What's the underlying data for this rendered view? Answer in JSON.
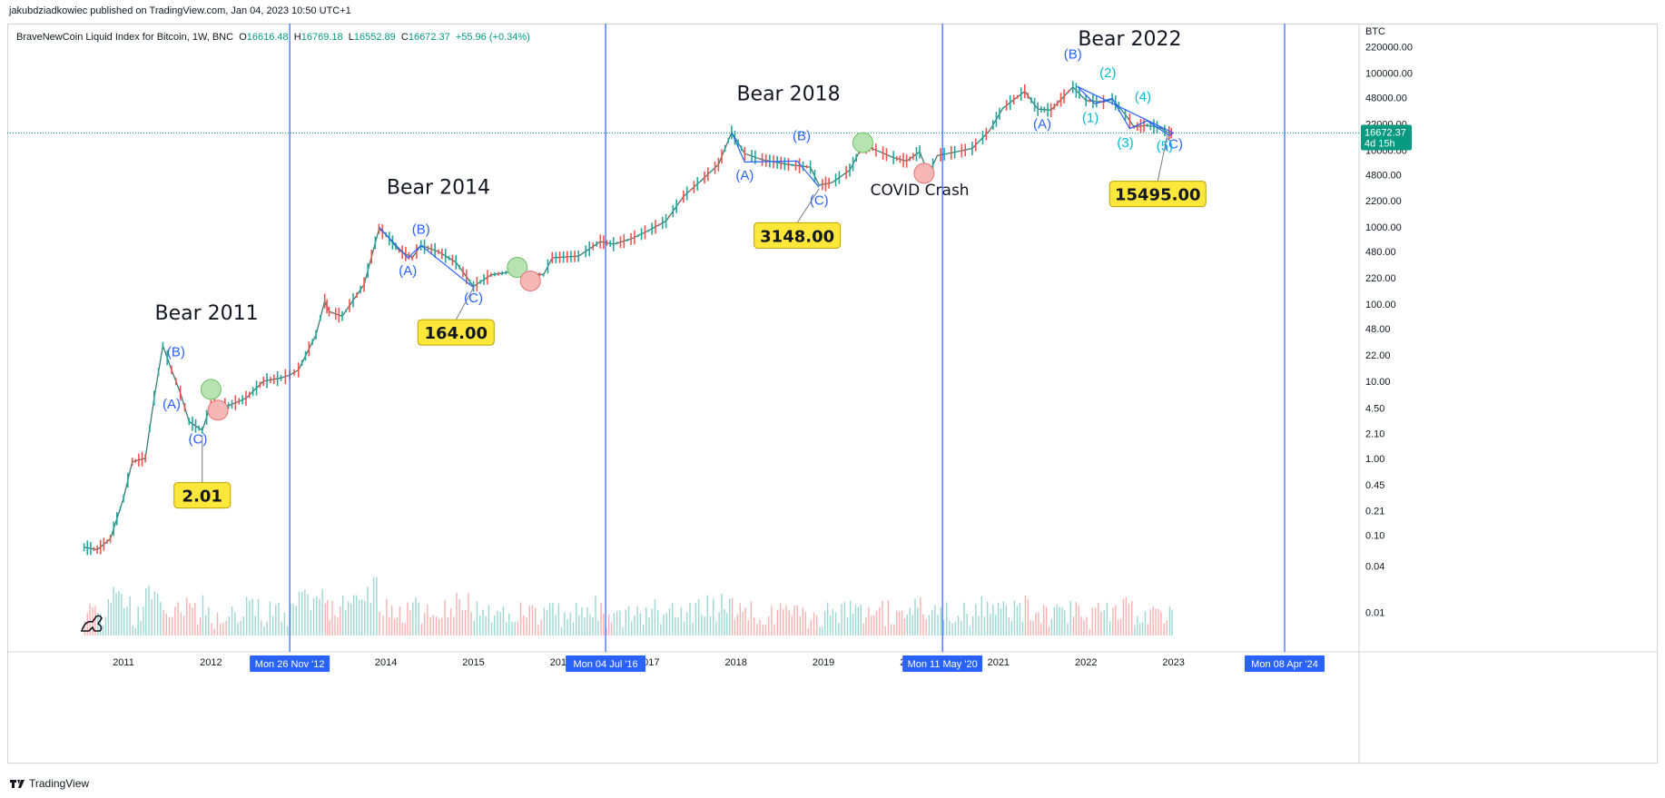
{
  "header": {
    "published_line": "jakubdziadkowiec published on TradingView.com, Jan 04, 2023 10:50 UTC+1"
  },
  "legend": {
    "symbol": "BraveNewCoin Liquid Index for Bitcoin, 1W, BNC",
    "open_label": "O",
    "open": "16616.48",
    "high_label": "H",
    "high": "16769.18",
    "low_label": "L",
    "low": "16552.89",
    "close_label": "C",
    "close": "16672.37",
    "change": "+55.96 (+0.34%)"
  },
  "footer": {
    "brand": "TradingView",
    "brand_icon": "tradingview-logo-icon",
    "watermark_icon": "dinosaur-icon"
  },
  "colors": {
    "up": "#26a69a",
    "down": "#ef5350",
    "wave_blue": "#2962ff",
    "wave_cyan": "#00bcd4",
    "vline": "#2962ff",
    "callout_fill": "#fde73b",
    "price_badge": "#089981",
    "green_circle": "#b7e3b2",
    "red_circle": "#f7b7b7"
  },
  "chart_data": {
    "type": "line",
    "title": "BraveNewCoin Liquid Index for Bitcoin, 1W, BNC",
    "y_scale": "log",
    "ylim": [
      0.005,
      300000
    ],
    "xlim": [
      2009.9,
      2025.1
    ],
    "xlabel": "",
    "ylabel": "",
    "currency_label": "BTC",
    "y_ticks": [
      "220000.00",
      "100000.00",
      "48000.00",
      "22000.00",
      "10000.00",
      "4800.00",
      "2200.00",
      "1000.00",
      "480.00",
      "220.00",
      "100.00",
      "48.00",
      "22.00",
      "10.00",
      "4.50",
      "2.10",
      "1.00",
      "0.45",
      "0.21",
      "0.10",
      "0.04",
      "0.01"
    ],
    "x_ticks": [
      "2011",
      "2012",
      "2014",
      "2015",
      "2016",
      "2017",
      "2018",
      "2019",
      "2020",
      "2021",
      "2022",
      "2023"
    ],
    "last_price": {
      "value": 16672.37,
      "label": "16672.37",
      "countdown": "4d 15h"
    },
    "series": [
      {
        "values": [
          [
            2010.55,
            0.07
          ],
          [
            2010.7,
            0.065
          ],
          [
            2010.85,
            0.09
          ],
          [
            2011.0,
            0.3
          ],
          [
            2011.1,
            0.9
          ],
          [
            2011.25,
            1.0
          ],
          [
            2011.35,
            6
          ],
          [
            2011.45,
            29
          ],
          [
            2011.55,
            14
          ],
          [
            2011.65,
            7
          ],
          [
            2011.75,
            3
          ],
          [
            2011.9,
            2.3
          ],
          [
            2012.0,
            5
          ],
          [
            2012.2,
            4.8
          ],
          [
            2012.4,
            6
          ],
          [
            2012.6,
            10
          ],
          [
            2012.8,
            11
          ],
          [
            2012.9,
            12
          ],
          [
            2013.0,
            14
          ],
          [
            2013.2,
            40
          ],
          [
            2013.3,
            110
          ],
          [
            2013.35,
            80
          ],
          [
            2013.5,
            70
          ],
          [
            2013.75,
            180
          ],
          [
            2013.92,
            950
          ],
          [
            2014.0,
            800
          ],
          [
            2014.15,
            500
          ],
          [
            2014.3,
            400
          ],
          [
            2014.4,
            580
          ],
          [
            2014.6,
            480
          ],
          [
            2014.8,
            350
          ],
          [
            2015.0,
            170
          ],
          [
            2015.2,
            240
          ],
          [
            2015.5,
            270
          ],
          [
            2015.8,
            240
          ],
          [
            2015.9,
            400
          ],
          [
            2016.2,
            420
          ],
          [
            2016.45,
            650
          ],
          [
            2016.6,
            600
          ],
          [
            2016.8,
            700
          ],
          [
            2017.0,
            900
          ],
          [
            2017.2,
            1200
          ],
          [
            2017.4,
            2500
          ],
          [
            2017.6,
            4000
          ],
          [
            2017.8,
            6500
          ],
          [
            2017.95,
            17000
          ],
          [
            2018.1,
            9000
          ],
          [
            2018.3,
            7500
          ],
          [
            2018.6,
            6500
          ],
          [
            2018.85,
            6000
          ],
          [
            2018.95,
            3500
          ],
          [
            2019.1,
            3800
          ],
          [
            2019.3,
            5500
          ],
          [
            2019.45,
            11500
          ],
          [
            2019.6,
            10000
          ],
          [
            2019.8,
            8000
          ],
          [
            2019.95,
            7200
          ],
          [
            2020.1,
            9500
          ],
          [
            2020.2,
            4800
          ],
          [
            2020.3,
            8500
          ],
          [
            2020.5,
            9400
          ],
          [
            2020.7,
            10500
          ],
          [
            2020.9,
            18000
          ],
          [
            2021.05,
            35000
          ],
          [
            2021.3,
            58000
          ],
          [
            2021.45,
            34000
          ],
          [
            2021.6,
            33000
          ],
          [
            2021.75,
            50000
          ],
          [
            2021.85,
            66000
          ],
          [
            2022.0,
            44000
          ],
          [
            2022.2,
            42000
          ],
          [
            2022.3,
            46000
          ],
          [
            2022.45,
            29000
          ],
          [
            2022.55,
            20000
          ],
          [
            2022.7,
            21000
          ],
          [
            2022.85,
            19500
          ],
          [
            2022.95,
            16500
          ],
          [
            2023.0,
            16672.37
          ]
        ]
      }
    ],
    "annotations": [
      {
        "text": "Bear 2011",
        "x": 2011.95,
        "y": 63
      },
      {
        "text": "Bear 2014",
        "x": 2014.6,
        "y": 2700
      },
      {
        "text": "Bear 2018",
        "x": 2018.6,
        "y": 44000
      },
      {
        "text": "Bear 2022",
        "x": 2022.5,
        "y": 230000
      },
      {
        "text": "COVID Crash",
        "x": 2020.1,
        "y": 2600
      }
    ],
    "waves": [
      {
        "text": "(B)",
        "x": 2011.6,
        "y": 21,
        "color": "blue"
      },
      {
        "text": "(A)",
        "x": 2011.55,
        "y": 4.4,
        "color": "blue"
      },
      {
        "text": "(C)",
        "x": 2011.85,
        "y": 1.55,
        "color": "blue"
      },
      {
        "text": "(B)",
        "x": 2014.4,
        "y": 820,
        "color": "blue"
      },
      {
        "text": "(A)",
        "x": 2014.25,
        "y": 240,
        "color": "blue"
      },
      {
        "text": "(C)",
        "x": 2015.0,
        "y": 105,
        "color": "blue"
      },
      {
        "text": "(B)",
        "x": 2018.75,
        "y": 13500,
        "color": "blue"
      },
      {
        "text": "(A)",
        "x": 2018.1,
        "y": 4100,
        "color": "blue"
      },
      {
        "text": "(C)",
        "x": 2018.95,
        "y": 1950,
        "color": "blue"
      },
      {
        "text": "(A)",
        "x": 2021.5,
        "y": 19000,
        "color": "blue"
      },
      {
        "text": "(B)",
        "x": 2021.85,
        "y": 155000,
        "color": "blue"
      },
      {
        "text": "(C)",
        "x": 2023.0,
        "y": 10500,
        "color": "blue"
      },
      {
        "text": "(1)",
        "x": 2022.05,
        "y": 23000,
        "color": "cyan"
      },
      {
        "text": "(2)",
        "x": 2022.25,
        "y": 88000,
        "color": "cyan"
      },
      {
        "text": "(3)",
        "x": 2022.45,
        "y": 11000,
        "color": "cyan"
      },
      {
        "text": "(4)",
        "x": 2022.65,
        "y": 43000,
        "color": "cyan"
      },
      {
        "text": "(5)",
        "x": 2022.9,
        "y": 10000,
        "color": "cyan"
      }
    ],
    "wave_lines": [
      [
        [
          2013.92,
          1000
        ],
        [
          2014.25,
          400
        ],
        [
          2014.4,
          580
        ],
        [
          2015.0,
          165
        ]
      ],
      [
        [
          2017.95,
          17000
        ],
        [
          2018.1,
          7000
        ],
        [
          2018.7,
          7200
        ],
        [
          2018.95,
          3300
        ]
      ],
      [
        [
          2021.9,
          67000
        ],
        [
          2022.1,
          40000
        ],
        [
          2022.3,
          47000
        ],
        [
          2022.5,
          19000
        ],
        [
          2022.7,
          24000
        ],
        [
          2022.95,
          15500
        ],
        [
          2023.0,
          16672
        ]
      ],
      [
        [
          2021.9,
          67000
        ],
        [
          2023.0,
          16672
        ]
      ]
    ],
    "callouts": [
      {
        "label": "2.01",
        "value": 2.01,
        "x": 2011.9,
        "anchor_x": 2011.9,
        "anchor_y": 2.0,
        "box_y": 0.33
      },
      {
        "label": "164.00",
        "value": 164.0,
        "x": 2014.8,
        "anchor_x": 2015.0,
        "anchor_y": 164,
        "box_y": 43
      },
      {
        "label": "3148.00",
        "value": 3148.0,
        "x": 2018.7,
        "anchor_x": 2018.95,
        "anchor_y": 3148,
        "box_y": 780
      },
      {
        "label": "15495.00",
        "value": 15495.0,
        "x": 2022.82,
        "anchor_x": 2022.93,
        "anchor_y": 15495,
        "box_y": 2700
      }
    ],
    "circles": [
      {
        "color": "green",
        "x": 2012.0,
        "y": 7.8
      },
      {
        "color": "red",
        "x": 2012.08,
        "y": 4.2
      },
      {
        "color": "green",
        "x": 2015.5,
        "y": 300
      },
      {
        "color": "red",
        "x": 2015.65,
        "y": 200
      },
      {
        "color": "green",
        "x": 2019.45,
        "y": 12500
      },
      {
        "color": "red",
        "x": 2020.15,
        "y": 5000
      }
    ],
    "vertical_markers": [
      {
        "label": "Mon 26 Nov '12",
        "x": 2012.9
      },
      {
        "label": "Mon 04 Jul '16",
        "x": 2016.51
      },
      {
        "label": "Mon 11 May '20",
        "x": 2020.36
      },
      {
        "label": "Mon 08 Apr '24",
        "x": 2024.27
      }
    ]
  }
}
